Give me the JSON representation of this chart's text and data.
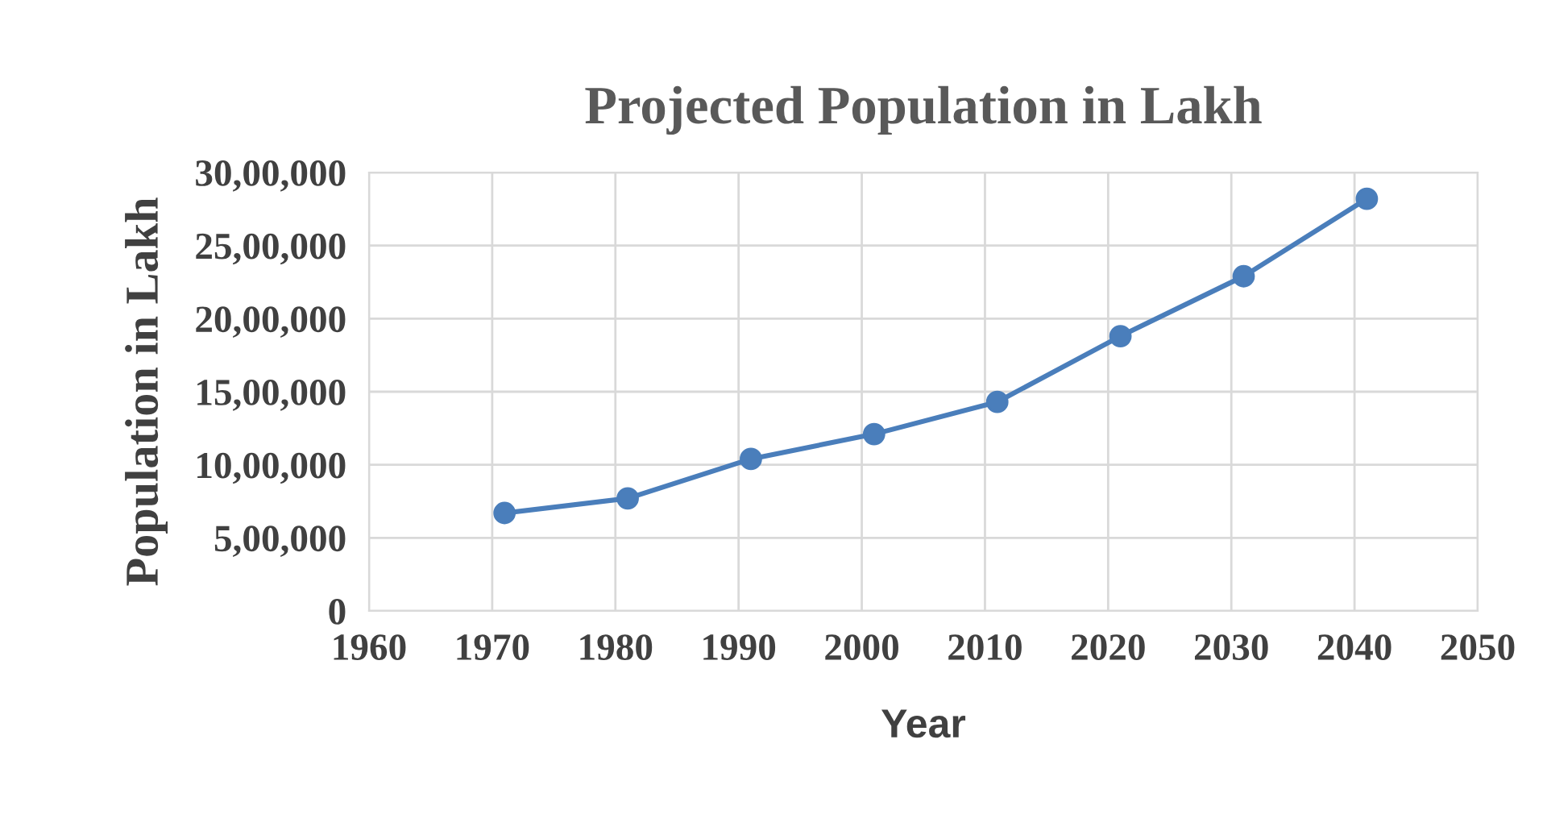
{
  "chart_data": {
    "type": "line",
    "title": "Projected Population in Lakh",
    "xlabel": "Year",
    "ylabel": "Population in Lakh",
    "x": [
      1971,
      1981,
      1991,
      2001,
      2011,
      2021,
      2031,
      2041
    ],
    "series": [
      {
        "color": "#4a7ebb",
        "values": [
          670000,
          770000,
          1040000,
          1210000,
          1430000,
          1880000,
          2290000,
          2820000
        ]
      }
    ],
    "xlim": [
      1960,
      2050
    ],
    "xticks": [
      1960,
      1970,
      1980,
      1990,
      2000,
      2010,
      2020,
      2030,
      2040,
      2050
    ],
    "ylim": [
      0,
      3000000
    ],
    "yticks": [
      0,
      {
        "value": 500000,
        "label": "5,00,000"
      },
      {
        "value": 1000000,
        "label": "10,00,000"
      },
      {
        "value": 1500000,
        "label": "15,00,000"
      },
      {
        "value": 2000000,
        "label": "20,00,000"
      },
      {
        "value": 2500000,
        "label": "25,00,000"
      },
      {
        "value": 3000000,
        "label": "30,00,000"
      }
    ],
    "grid": true,
    "marker": "circle",
    "line_style": "solid"
  }
}
